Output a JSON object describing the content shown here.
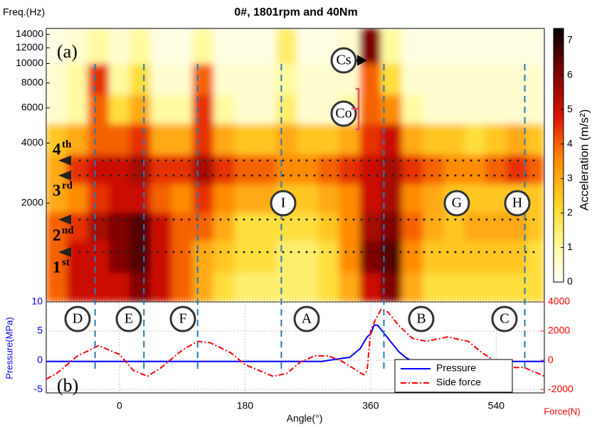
{
  "chart_data": [
    {
      "type": "heatmap",
      "title": "0#, 1801rpm and 40Nm",
      "ylabel": "Freq.(Hz)",
      "xlim": [
        -105,
        609
      ],
      "ylim": [
        640,
        15000
      ],
      "ylog": true,
      "yticks": [
        2000,
        4000,
        6000,
        8000,
        10000,
        12000,
        14000
      ],
      "xbins": [
        -105,
        -75,
        -45,
        -15,
        15,
        45,
        75,
        105,
        135,
        165,
        195,
        225,
        255,
        285,
        315,
        345,
        375,
        405,
        435,
        465,
        495,
        525,
        555,
        585,
        609
      ],
      "ybins": [
        640,
        900,
        1300,
        1800,
        2500,
        3500,
        5000,
        7000,
        10000,
        15000
      ],
      "z": [
        [
          4,
          5,
          5,
          5,
          6,
          5,
          4,
          3,
          2,
          1.5,
          1.5,
          1.5,
          1.5,
          2,
          3,
          5,
          6,
          3,
          2,
          2,
          2,
          2,
          2,
          2
        ],
        [
          4,
          5,
          5,
          6,
          6.5,
          5,
          4,
          3,
          2.5,
          2,
          2,
          1.5,
          1.5,
          2,
          3.5,
          6,
          6.5,
          3.5,
          2.5,
          2.5,
          2.5,
          2.5,
          2.5,
          2
        ],
        [
          4,
          4.5,
          5.5,
          6,
          6.5,
          5,
          4,
          4,
          3,
          2,
          2,
          2,
          2,
          2.5,
          3.5,
          5.5,
          6,
          4,
          3,
          2.5,
          3,
          3,
          3,
          2.5
        ],
        [
          3,
          3.5,
          4.5,
          5,
          5,
          4,
          3.5,
          4.5,
          3.5,
          3,
          3,
          2.5,
          2.5,
          3,
          3.5,
          5,
          5.5,
          3.5,
          3,
          2.5,
          2.5,
          2.5,
          2.5,
          2.5
        ],
        [
          3,
          4.5,
          5,
          5,
          5.5,
          4.5,
          4.5,
          5.5,
          4.5,
          4,
          4,
          3.5,
          3.5,
          4,
          4.5,
          5,
          5.5,
          4.5,
          4,
          3.5,
          3.5,
          4,
          4.5,
          4
        ],
        [
          2.5,
          3,
          4,
          4,
          4.5,
          3,
          3,
          4.5,
          3,
          2.5,
          2.5,
          3,
          2.5,
          2.5,
          3,
          4.5,
          5,
          3,
          2.5,
          2.5,
          2,
          2.5,
          3,
          2.5
        ],
        [
          0.5,
          1,
          4,
          2,
          3,
          1,
          1,
          4.5,
          1,
          0.5,
          0.5,
          1.5,
          0.5,
          0.5,
          1,
          4,
          3.5,
          1,
          0.5,
          0.5,
          0.5,
          0.5,
          0.5,
          0.5
        ],
        [
          0.5,
          1,
          4.5,
          1,
          2,
          0.5,
          0.5,
          4,
          0.5,
          0.5,
          0.5,
          1,
          0.5,
          0.5,
          0.5,
          4,
          2,
          0.5,
          0.5,
          0.5,
          0.5,
          0.5,
          0.5,
          0.5
        ],
        [
          0.3,
          0.5,
          1,
          0.5,
          1,
          0.3,
          0.3,
          1,
          0.3,
          0.3,
          0.3,
          1.5,
          0.3,
          0.3,
          0.5,
          6,
          1,
          0.3,
          0.3,
          0.3,
          0.3,
          0.3,
          0.3,
          0.3
        ]
      ],
      "colorbar": {
        "label": "Acceleration (m/s²)",
        "lim": [
          0,
          7.35
        ],
        "ticks": [
          0,
          1,
          2,
          3,
          4,
          5,
          6,
          7
        ]
      },
      "vlines": [
        -35,
        35,
        112,
        232,
        379,
        581
      ],
      "orders": [
        {
          "label": "4",
          "suffix": "th",
          "value": 3270
        },
        {
          "label": "3",
          "suffix": "rd",
          "value": 2750
        },
        {
          "label": "2",
          "suffix": "nd",
          "value": 1656
        },
        {
          "label": "1",
          "suffix": "st",
          "value": 1137
        }
      ],
      "annotations": [
        "(a)",
        "Cs",
        "Co",
        "I",
        "G",
        "H"
      ]
    },
    {
      "type": "line",
      "xlabel": "Angle(°)",
      "ylabel": "Pressure(MPa)",
      "y2label": "Force(N)",
      "xlim": [
        -105,
        609
      ],
      "xticks": [
        0,
        180,
        360,
        540
      ],
      "ylim": [
        -5.6,
        10
      ],
      "yticks": [
        -5,
        0,
        5,
        10
      ],
      "y2lim": [
        -2240,
        4000
      ],
      "y2ticks": [
        -2000,
        0,
        2000,
        4000
      ],
      "grid": true,
      "legend": "lower right",
      "series": [
        {
          "name": "Pressure",
          "color": "#0000ff",
          "axis": "y",
          "x": [
            -105,
            290,
            300,
            330,
            345,
            355,
            360,
            365,
            370,
            380,
            390,
            400,
            410,
            420,
            609
          ],
          "values": [
            -0.2,
            -0.2,
            0,
            0.5,
            2,
            4,
            4.5,
            6,
            6,
            4.5,
            3,
            1.5,
            0.5,
            -0.2,
            -0.2
          ]
        },
        {
          "name": "Side force",
          "color": "#ff0000",
          "axis": "y2",
          "x": [
            -105,
            -90,
            -60,
            -30,
            0,
            20,
            35,
            40,
            60,
            90,
            112,
            130,
            160,
            180,
            200,
            220,
            240,
            260,
            280,
            300,
            320,
            340,
            350,
            355,
            360,
            365,
            375,
            385,
            400,
            420,
            440,
            470,
            500,
            520,
            540,
            560,
            580,
            600,
            609
          ],
          "values": [
            -1300,
            -900,
            300,
            1000,
            400,
            -700,
            -1000,
            -1100,
            -500,
            700,
            1300,
            1200,
            500,
            -300,
            -700,
            -1100,
            -900,
            -100,
            300,
            300,
            -100,
            -700,
            -1000,
            -700,
            2000,
            2600,
            3500,
            3300,
            2400,
            1500,
            1300,
            1600,
            1300,
            500,
            -100,
            -500,
            -500,
            -900,
            -1100
          ]
        }
      ],
      "annotations": [
        "(b)",
        "D",
        "E",
        "F",
        "A",
        "B",
        "C"
      ]
    }
  ]
}
